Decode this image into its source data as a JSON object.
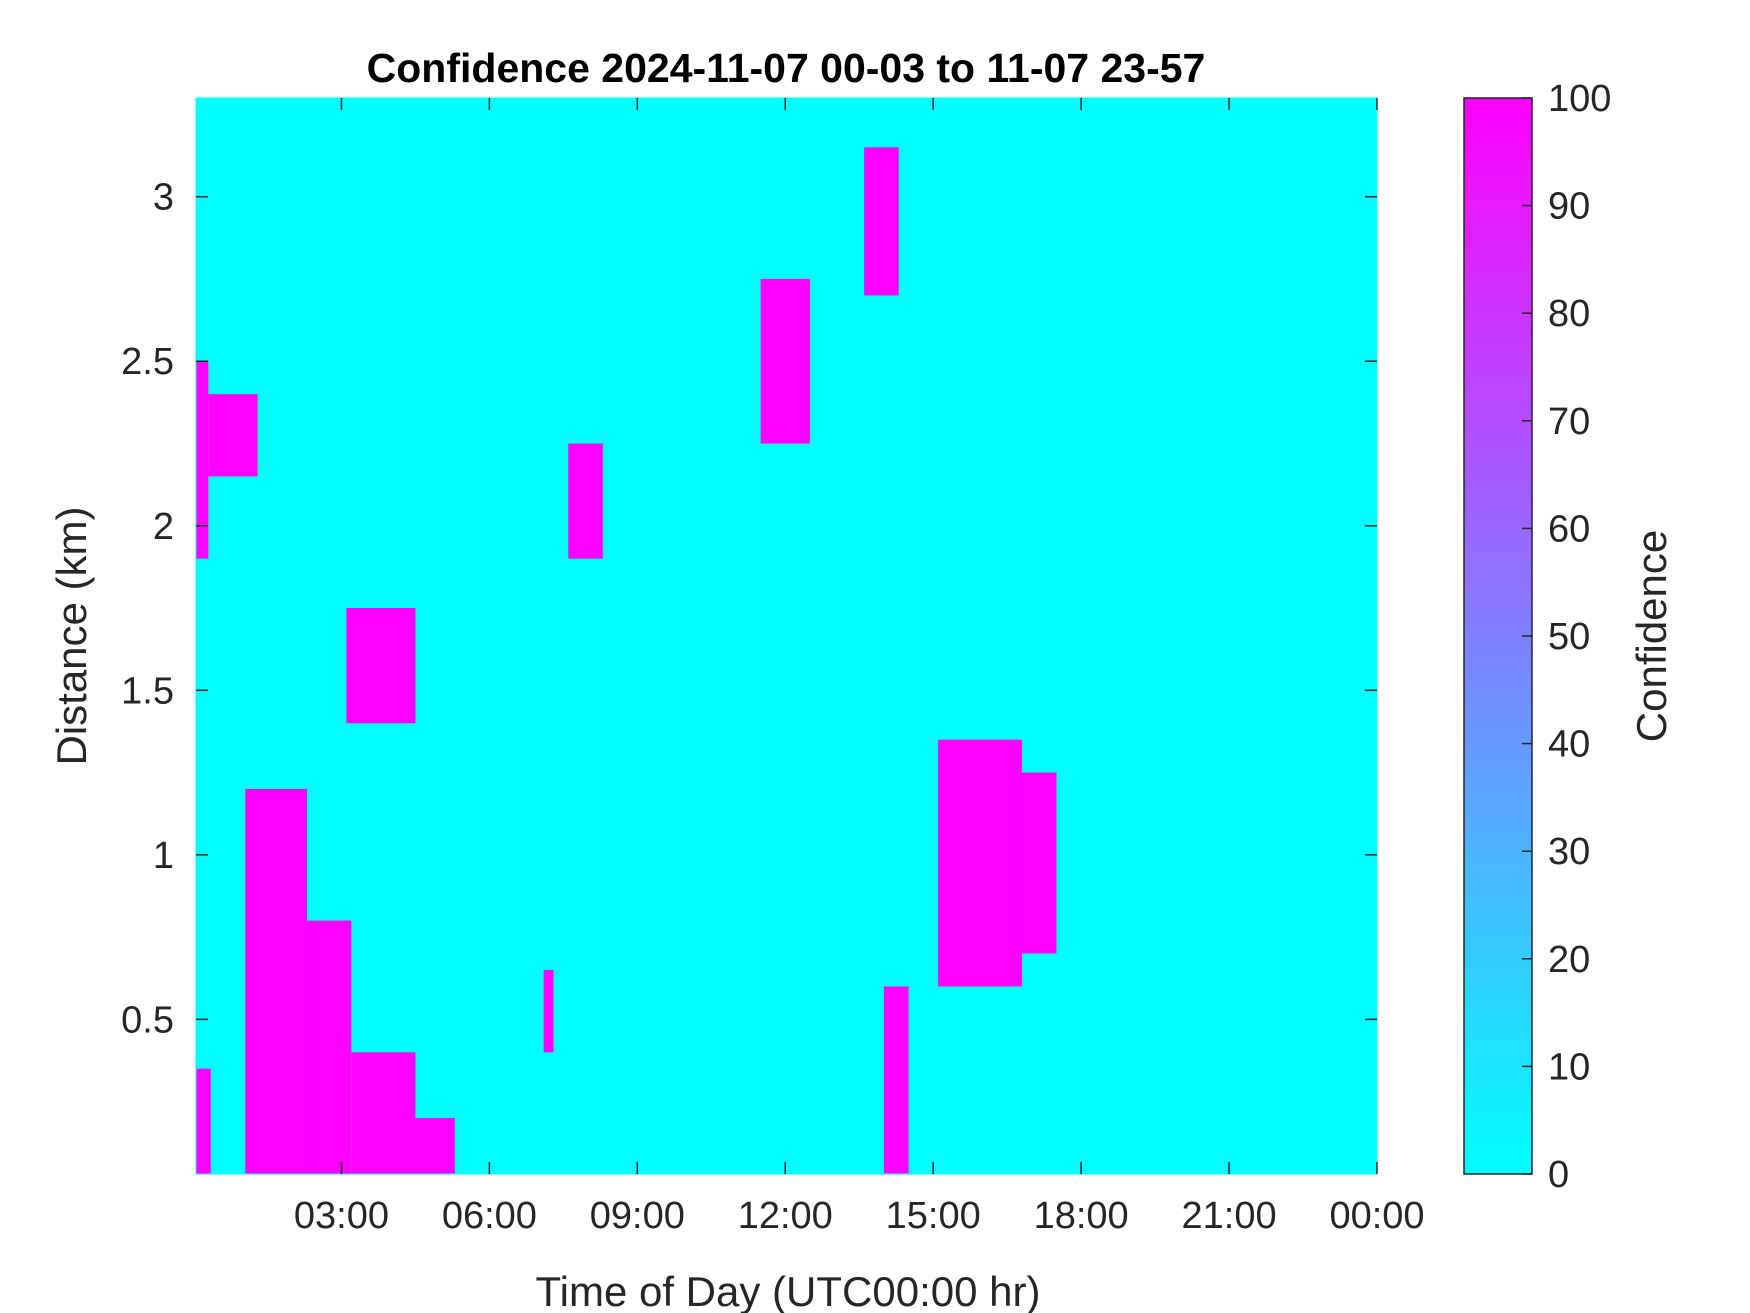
{
  "chart_data": {
    "type": "heatmap",
    "title": "Confidence 2024-11-07 00-03 to 11-07 23-57",
    "xlabel": "Time of Day (UTC00:00 hr)",
    "ylabel": "Distance (km)",
    "colorbar_label": "Confidence",
    "x_unit": "hours",
    "xlim": [
      0.05,
      24.0
    ],
    "ylim": [
      0.03,
      3.3
    ],
    "x_ticks": [
      {
        "value": 3,
        "label": "03:00"
      },
      {
        "value": 6,
        "label": "06:00"
      },
      {
        "value": 9,
        "label": "09:00"
      },
      {
        "value": 12,
        "label": "12:00"
      },
      {
        "value": 15,
        "label": "15:00"
      },
      {
        "value": 18,
        "label": "18:00"
      },
      {
        "value": 21,
        "label": "21:00"
      },
      {
        "value": 24,
        "label": "00:00"
      }
    ],
    "y_ticks": [
      {
        "value": 0.5,
        "label": "0.5"
      },
      {
        "value": 1,
        "label": "1"
      },
      {
        "value": 1.5,
        "label": "1.5"
      },
      {
        "value": 2,
        "label": "2"
      },
      {
        "value": 2.5,
        "label": "2.5"
      },
      {
        "value": 3,
        "label": "3"
      }
    ],
    "colorbar_ticks": [
      {
        "value": 0,
        "label": "0"
      },
      {
        "value": 10,
        "label": "10"
      },
      {
        "value": 20,
        "label": "20"
      },
      {
        "value": 30,
        "label": "30"
      },
      {
        "value": 40,
        "label": "40"
      },
      {
        "value": 50,
        "label": "50"
      },
      {
        "value": 60,
        "label": "60"
      },
      {
        "value": 70,
        "label": "70"
      },
      {
        "value": 80,
        "label": "80"
      },
      {
        "value": 90,
        "label": "90"
      },
      {
        "value": 100,
        "label": "100"
      }
    ],
    "clim": [
      0,
      100
    ],
    "colormap": [
      "#00ffff",
      "#ff00ff"
    ],
    "background_value": 0,
    "high_regions": [
      {
        "x": [
          0.05,
          0.35
        ],
        "y": [
          0.03,
          0.35
        ],
        "value": 100
      },
      {
        "x": [
          0.05,
          0.3
        ],
        "y": [
          1.9,
          2.5
        ],
        "value": 100
      },
      {
        "x": [
          0.3,
          1.3
        ],
        "y": [
          2.15,
          2.4
        ],
        "value": 100
      },
      {
        "x": [
          1.05,
          2.3
        ],
        "y": [
          0.03,
          1.2
        ],
        "value": 100
      },
      {
        "x": [
          2.3,
          3.2
        ],
        "y": [
          0.03,
          0.8
        ],
        "value": 100
      },
      {
        "x": [
          3.2,
          4.5
        ],
        "y": [
          0.03,
          0.4
        ],
        "value": 100
      },
      {
        "x": [
          4.5,
          5.3
        ],
        "y": [
          0.03,
          0.2
        ],
        "value": 100
      },
      {
        "x": [
          3.1,
          4.5
        ],
        "y": [
          1.4,
          1.75
        ],
        "value": 100
      },
      {
        "x": [
          7.6,
          8.3
        ],
        "y": [
          1.9,
          2.25
        ],
        "value": 100
      },
      {
        "x": [
          11.5,
          12.5
        ],
        "y": [
          2.25,
          2.75
        ],
        "value": 100
      },
      {
        "x": [
          13.6,
          14.3
        ],
        "y": [
          2.7,
          3.15
        ],
        "value": 100
      },
      {
        "x": [
          14.0,
          14.5
        ],
        "y": [
          0.03,
          0.6
        ],
        "value": 100
      },
      {
        "x": [
          15.1,
          16.8
        ],
        "y": [
          0.6,
          1.35
        ],
        "value": 100
      },
      {
        "x": [
          16.8,
          17.5
        ],
        "y": [
          0.7,
          1.25
        ],
        "value": 100
      },
      {
        "x": [
          7.1,
          7.3
        ],
        "y": [
          0.4,
          0.65
        ],
        "value": 100
      }
    ]
  }
}
